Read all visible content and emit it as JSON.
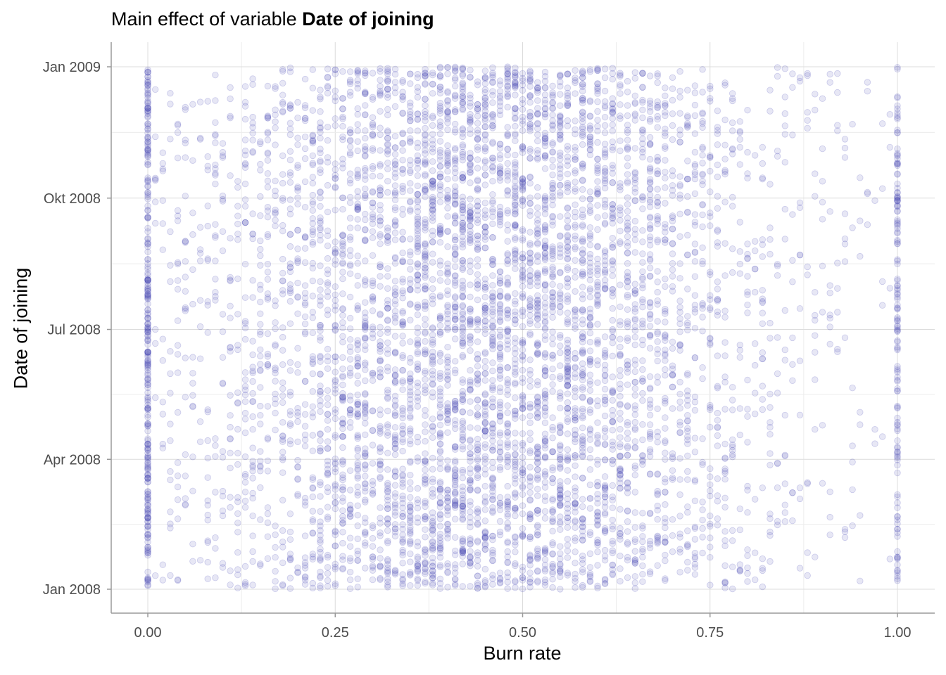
{
  "chart_data": {
    "type": "scatter",
    "title_prefix": "Main effect of variable",
    "title_variable": "Date of joining",
    "xlabel": "Burn rate",
    "ylabel": "Date of joining",
    "xlim": [
      0,
      1
    ],
    "x_ticks": [
      0,
      0.25,
      0.5,
      0.75,
      1
    ],
    "x_tick_labels": [
      "0.00",
      "0.25",
      "0.50",
      "0.75",
      "1.00"
    ],
    "y_axis_type": "date",
    "ylim": [
      "2008-01-01",
      "2009-01-01"
    ],
    "y_ticks": [
      "2008-01-01",
      "2008-04-01",
      "2008-07-01",
      "2008-10-01",
      "2009-01-01"
    ],
    "y_tick_labels": [
      "Jan 2008",
      "Apr 2008",
      "Jul 2008",
      "Okt 2008",
      "Jan 2009"
    ],
    "grid": true,
    "point_color": "#3a3ab0",
    "x_distribution": {
      "min": 0.0,
      "max": 1.0,
      "center": 0.45,
      "spread": 0.2,
      "step": 0.01,
      "mass_at_0": 0.03,
      "mass_at_1": 0.02
    },
    "y_distribution": "uniform over 2008-01-01 to 2009-01-01"
  }
}
